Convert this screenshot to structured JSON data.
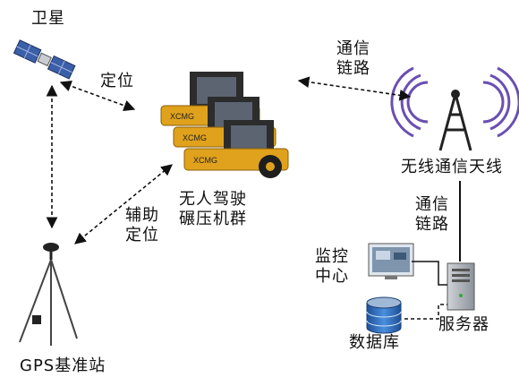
{
  "labels": {
    "satellite": "卫星",
    "positioning": "定位",
    "comm_link_top": "通信\n链路",
    "antenna": "无线通信天线",
    "roller_group": "无人驾驶\n碾压机群",
    "aux_positioning": "辅助\n定位",
    "comm_link_right": "通信\n链路",
    "monitor_center": "监控\n中心",
    "database": "数据库",
    "server": "服务器",
    "gps_station": "GPS基准站"
  },
  "roller_brand": "XCMG",
  "colors": {
    "roller_yellow": "#e0a21c",
    "roller_dark": "#2c2c2c",
    "signal_purple": "#6a4fb3",
    "satellite_panel": "#3b5fa8",
    "db_blue": "#2c68b8",
    "arrow": "#111111"
  },
  "icons": [
    "satellite-icon",
    "roller-group-icon",
    "antenna-icon",
    "monitor-icon",
    "database-icon",
    "server-icon",
    "gps-station-icon"
  ]
}
